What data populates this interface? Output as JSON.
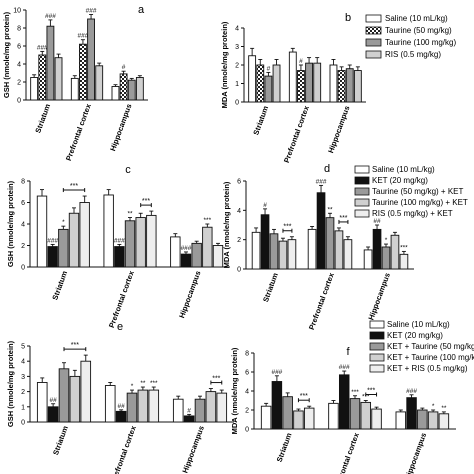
{
  "legends": {
    "group1": [
      "Saline (10 mL/kg)",
      "Taurine (50 mg/kg)",
      "Taurine (100 mg/kg)",
      "RIS (0.5 mg/kg)"
    ],
    "group2": [
      "Saline (10 mL/kg)",
      "KET (20 mg/kg)",
      "Taurine (50 mg/kg) + KET",
      "Taurine (100 mg/kg) + KET",
      "RIS (0.5 mg/kg) + KET"
    ],
    "group3": [
      "Saline (10 mL/kg)",
      "KET (20 mg/kg)",
      "KET + Taurine (50 mg/kg)",
      "KET + Taurine (100 mg/kg)",
      "KET + RIS (0.5 mg/kg)"
    ]
  },
  "colors": {
    "bar_outline": "#111111",
    "fills": [
      "#ffffff",
      "#111111",
      "#9a9a9a",
      "#d0d0d0",
      "#eeeeee"
    ]
  },
  "chart_data": [
    {
      "panel": "a",
      "type": "bar",
      "ylabel": "GSH (nmole/mg protein)",
      "ylim": [
        0,
        10
      ],
      "yticks": [
        0,
        2,
        4,
        6,
        8,
        10
      ],
      "categories": [
        "Striatum",
        "Prefrontal cortex",
        "Hippocampus"
      ],
      "series": [
        {
          "values": [
            2.5,
            2.4,
            1.5
          ],
          "errors": [
            0.3,
            0.3,
            0.2
          ],
          "marks": [
            "",
            "",
            ""
          ]
        },
        {
          "values": [
            5.0,
            6.2,
            2.9
          ],
          "errors": [
            0.4,
            0.5,
            0.3
          ],
          "marks": [
            "###",
            "###",
            "#"
          ]
        },
        {
          "values": [
            8.2,
            9.0,
            2.2
          ],
          "errors": [
            0.7,
            0.5,
            0.2
          ],
          "marks": [
            "###",
            "###",
            ""
          ]
        },
        {
          "values": [
            4.7,
            3.8,
            2.5
          ],
          "errors": [
            0.4,
            0.3,
            0.2
          ],
          "marks": [
            "",
            "",
            ""
          ]
        }
      ],
      "legend_group": "group1",
      "fill_idx": [
        0,
        1,
        2,
        3
      ],
      "pattern_series": 1
    },
    {
      "panel": "b",
      "type": "bar",
      "ylabel": "MDA (nmole/mg protein)",
      "ylim": [
        0,
        4
      ],
      "yticks": [
        0,
        1,
        2,
        3,
        4
      ],
      "categories": [
        "Striatum",
        "Prefrontal cortex",
        "Hippocampus"
      ],
      "series": [
        {
          "values": [
            2.5,
            2.7,
            2.0
          ],
          "errors": [
            0.4,
            0.2,
            0.3
          ],
          "marks": [
            "",
            "",
            ""
          ]
        },
        {
          "values": [
            2.0,
            1.7,
            1.7
          ],
          "errors": [
            0.3,
            0.3,
            0.2
          ],
          "marks": [
            "",
            "#",
            ""
          ]
        },
        {
          "values": [
            1.4,
            2.1,
            1.8
          ],
          "errors": [
            0.2,
            0.3,
            0.2
          ],
          "marks": [
            "#",
            "",
            ""
          ]
        },
        {
          "values": [
            2.0,
            2.1,
            1.7
          ],
          "errors": [
            0.3,
            0.3,
            0.2
          ],
          "marks": [
            "",
            "",
            ""
          ]
        }
      ],
      "legend_group": "group1",
      "fill_idx": [
        0,
        1,
        2,
        3
      ],
      "pattern_series": 1
    },
    {
      "panel": "c",
      "type": "bar",
      "ylabel": "GSH (nmole/mg protein)",
      "ylim": [
        0,
        8
      ],
      "yticks": [
        0,
        2,
        4,
        6,
        8
      ],
      "categories": [
        "Striatum",
        "Prefrontal cortex",
        "Hippocampus"
      ],
      "series": [
        {
          "values": [
            6.6,
            6.7,
            2.8
          ],
          "errors": [
            0.6,
            0.5,
            0.3
          ],
          "marks": [
            "",
            "",
            ""
          ]
        },
        {
          "values": [
            1.9,
            1.9,
            1.2
          ],
          "errors": [
            0.2,
            0.2,
            0.2
          ],
          "marks": [
            "###",
            "###",
            "###"
          ]
        },
        {
          "values": [
            3.5,
            4.3,
            2.2
          ],
          "errors": [
            0.3,
            0.3,
            0.2
          ],
          "marks": [
            "*",
            "**",
            ""
          ]
        },
        {
          "values": [
            5.0,
            4.6,
            3.7
          ],
          "errors": [
            0.5,
            0.4,
            0.3
          ],
          "marks": [
            "",
            "",
            "***"
          ]
        },
        {
          "values": [
            6.0,
            4.8,
            2.0
          ],
          "errors": [
            0.6,
            0.4,
            0.2
          ],
          "marks": [
            "",
            "",
            ""
          ]
        }
      ],
      "brackets": [
        {
          "category": 0,
          "from": 2,
          "to": 4,
          "label": "***"
        },
        {
          "category": 1,
          "from": 3,
          "to": 4,
          "label": "***"
        }
      ],
      "legend_group": "group2",
      "fill_idx": [
        0,
        1,
        2,
        3,
        4
      ],
      "pattern_series": -1
    },
    {
      "panel": "d",
      "type": "bar",
      "ylabel": "MDA (nmole/mg protein)",
      "ylim": [
        0,
        6
      ],
      "yticks": [
        0,
        2,
        4,
        6
      ],
      "categories": [
        "Striatum",
        "Prefrontal cortex",
        "Hippocampus"
      ],
      "series": [
        {
          "values": [
            2.5,
            2.7,
            1.3
          ],
          "errors": [
            0.3,
            0.2,
            0.2
          ],
          "marks": [
            "",
            "",
            ""
          ]
        },
        {
          "values": [
            3.7,
            5.2,
            2.7
          ],
          "errors": [
            0.4,
            0.5,
            0.3
          ],
          "marks": [
            "#",
            "###",
            "##"
          ]
        },
        {
          "values": [
            2.4,
            3.5,
            1.5
          ],
          "errors": [
            0.3,
            0.3,
            0.2
          ],
          "marks": [
            "",
            "**",
            "*"
          ]
        },
        {
          "values": [
            1.9,
            2.6,
            2.3
          ],
          "errors": [
            0.2,
            0.2,
            0.2
          ],
          "marks": [
            "",
            "",
            ""
          ]
        },
        {
          "values": [
            2.0,
            2.0,
            1.0
          ],
          "errors": [
            0.2,
            0.2,
            0.2
          ],
          "marks": [
            "",
            "",
            "***"
          ]
        }
      ],
      "brackets": [
        {
          "category": 0,
          "from": 3,
          "to": 4,
          "label": "***"
        },
        {
          "category": 1,
          "from": 3,
          "to": 4,
          "label": "***"
        }
      ],
      "legend_group": "group2",
      "fill_idx": [
        0,
        1,
        2,
        3,
        4
      ],
      "pattern_series": -1
    },
    {
      "panel": "e",
      "type": "bar",
      "ylabel": "GSH (nmole/mg protein)",
      "ylim": [
        0,
        5
      ],
      "yticks": [
        0,
        1,
        2,
        3,
        4,
        5
      ],
      "categories": [
        "Striatum",
        "Prefrontal cortex",
        "Hippocampus"
      ],
      "series": [
        {
          "values": [
            2.6,
            2.4,
            1.5
          ],
          "errors": [
            0.3,
            0.2,
            0.2
          ],
          "marks": [
            "",
            "",
            ""
          ]
        },
        {
          "values": [
            1.0,
            0.7,
            0.4
          ],
          "errors": [
            0.2,
            0.1,
            0.1
          ],
          "marks": [
            "##",
            "##",
            "#"
          ]
        },
        {
          "values": [
            3.5,
            1.9,
            1.5
          ],
          "errors": [
            0.4,
            0.2,
            0.2
          ],
          "marks": [
            "",
            "*",
            ""
          ]
        },
        {
          "values": [
            3.0,
            2.1,
            2.0
          ],
          "errors": [
            0.4,
            0.2,
            0.2
          ],
          "marks": [
            "",
            "**",
            ""
          ]
        },
        {
          "values": [
            4.0,
            2.1,
            1.9
          ],
          "errors": [
            0.4,
            0.2,
            0.2
          ],
          "marks": [
            "",
            "***",
            ""
          ]
        }
      ],
      "brackets": [
        {
          "category": 0,
          "from": 2,
          "to": 4,
          "label": "***"
        },
        {
          "category": 2,
          "from": 3,
          "to": 4,
          "label": "***"
        }
      ],
      "legend_group": "group3",
      "fill_idx": [
        0,
        1,
        2,
        3,
        4
      ],
      "pattern_series": -1
    },
    {
      "panel": "f",
      "type": "bar",
      "ylabel": "MDA (nmole/mg protein)",
      "ylim": [
        0,
        8
      ],
      "yticks": [
        0,
        2,
        4,
        6,
        8
      ],
      "categories": [
        "Striatum",
        "Prefrontal cortex",
        "Hippocampus"
      ],
      "series": [
        {
          "values": [
            2.4,
            2.7,
            1.8
          ],
          "errors": [
            0.3,
            0.3,
            0.2
          ],
          "marks": [
            "",
            "",
            ""
          ]
        },
        {
          "values": [
            5.0,
            5.7,
            3.3
          ],
          "errors": [
            0.6,
            0.4,
            0.3
          ],
          "marks": [
            "###",
            "###",
            "###"
          ]
        },
        {
          "values": [
            3.4,
            3.2,
            2.0
          ],
          "errors": [
            0.4,
            0.3,
            0.2
          ],
          "marks": [
            "",
            "***",
            ""
          ]
        },
        {
          "values": [
            1.9,
            2.8,
            1.8
          ],
          "errors": [
            0.2,
            0.2,
            0.2
          ],
          "marks": [
            "",
            "***",
            "*"
          ]
        },
        {
          "values": [
            2.2,
            2.1,
            1.6
          ],
          "errors": [
            0.2,
            0.2,
            0.2
          ],
          "marks": [
            "",
            "",
            "**"
          ]
        }
      ],
      "brackets": [
        {
          "category": 0,
          "from": 3,
          "to": 4,
          "label": "***"
        },
        {
          "category": 1,
          "from": 3,
          "to": 4,
          "label": "***"
        }
      ],
      "legend_group": "group3",
      "fill_idx": [
        0,
        1,
        2,
        3,
        4
      ],
      "pattern_series": -1
    }
  ]
}
